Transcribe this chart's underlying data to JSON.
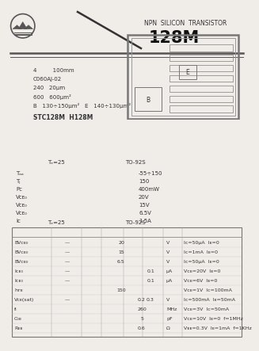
{
  "bg_color": "#f0ede8",
  "title_sub": "NPN  SILICON  TRANSISTOR",
  "title_main": "128M",
  "spec_lines": [
    "4         100mm",
    "C060AJ-02",
    "240   20μm",
    "600   600μm²",
    "B   130÷150μm²   E   140÷130μm²"
  ],
  "models_line": "STC128M  H128M",
  "abs_header_left": "Tₑ=25",
  "abs_header_right": "TO-92S",
  "abs_labels": [
    "Tₐₐ",
    "Tⱼ",
    "Pᴄ",
    "Vᴄᴇ₀",
    "Vᴄᴇ₀",
    "Vᴄᴇ₀",
    "Iᴄ"
  ],
  "abs_values": [
    "-55÷150",
    "150",
    "400mW",
    "20V",
    "15V",
    "6.5V",
    "1.5A"
  ],
  "elec_header_left": "Tₑ=25",
  "elec_header_right": "TO-92S",
  "elec_rows": [
    [
      "BVᴄᴇ₀",
      "—",
      "",
      "20",
      "",
      "",
      "V",
      "Iᴄ=50μA  Iᴇ=0"
    ],
    [
      "BVᴄᴇ₀",
      "—",
      "",
      "15",
      "",
      "",
      "V",
      "Iᴄ=1mA  Iᴇ=0"
    ],
    [
      "BVᴄᴇ₀",
      "—",
      "",
      "6.5",
      "",
      "",
      "V",
      "Iᴄ=50μA  Iᴇ=0"
    ],
    [
      "Iᴄᴇ₀",
      "—",
      "",
      "",
      "",
      "0.1",
      "μA",
      "Vᴄᴇ=20V  Iᴇ=0"
    ],
    [
      "Iᴄᴇ₀",
      "—",
      "",
      "",
      "",
      "0.1",
      "μA",
      "Vᴄᴇ=6V  Iᴇ=0"
    ],
    [
      "hᴛᴇ",
      "",
      "",
      "150",
      "",
      "",
      "",
      "Vᴄᴇ=1V  Iᴄ=100mA"
    ],
    [
      "Vᴄᴇ(sat)",
      "—",
      "",
      "",
      "0.2",
      "0.3",
      "V",
      "Iᴄ=500mA  Iᴇ=50mA"
    ],
    [
      "fₜ",
      "",
      "",
      "",
      "260",
      "",
      "MHz",
      "Vᴄᴇ=3V  Iᴄ=50mA"
    ],
    [
      "C₀ᴇ",
      "",
      "",
      "",
      "5",
      "",
      "pF",
      "Vᴄᴇ=10V  Iᴇ=0  f=1MHz"
    ],
    [
      "Rᴇᴇ",
      "",
      "",
      "",
      "0.6",
      "",
      "Ω",
      "Vᴇᴇ=0.3V  Iᴇ=1mA  f=1KHz"
    ]
  ]
}
